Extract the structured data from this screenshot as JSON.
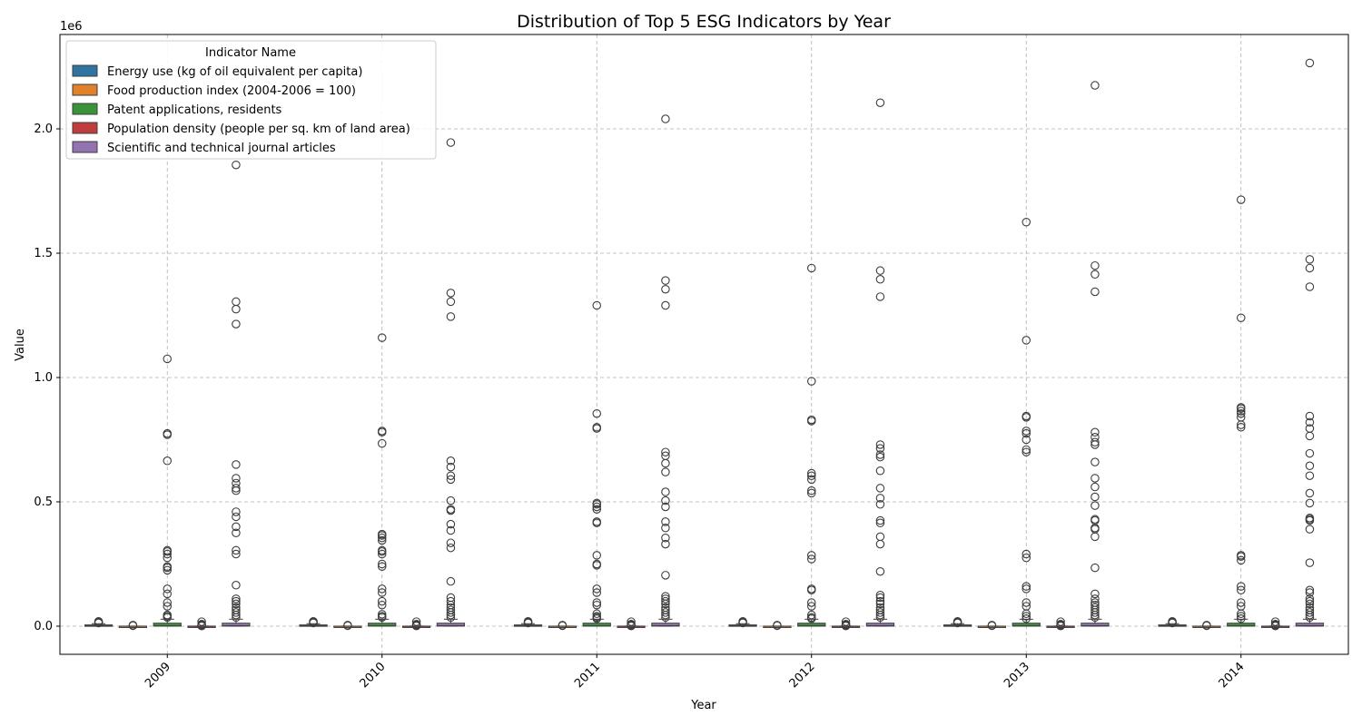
{
  "chart_data": {
    "type": "box",
    "title": "Distribution of Top 5 ESG Indicators by Year",
    "xlabel": "Year",
    "ylabel": "Value",
    "y_offset_label": "1e6",
    "ylim": [
      -115000,
      2380000
    ],
    "grid": true,
    "legend": {
      "title": "Indicator Name",
      "placement": "top-left"
    },
    "categories": [
      "2009",
      "2010",
      "2011",
      "2012",
      "2013",
      "2014"
    ],
    "y_ticks": [
      {
        "value": 0,
        "label": "0.0"
      },
      {
        "value": 500000,
        "label": "0.5"
      },
      {
        "value": 1000000,
        "label": "1.0"
      },
      {
        "value": 1500000,
        "label": "1.5"
      },
      {
        "value": 2000000,
        "label": "2.0"
      }
    ],
    "series": [
      {
        "name": "Energy use (kg of oil equivalent per capita)",
        "color": "#3274a1",
        "boxes": [
          {
            "q1": 1000,
            "median": 2500,
            "q3": 5000,
            "whisker_low": 0,
            "whisker_high": 10000,
            "outliers": [
              13000,
              15000,
              17000,
              19000
            ]
          },
          {
            "q1": 1000,
            "median": 2500,
            "q3": 5000,
            "whisker_low": 0,
            "whisker_high": 10000,
            "outliers": [
              13000,
              15000,
              17000,
              19000
            ]
          },
          {
            "q1": 1000,
            "median": 2500,
            "q3": 5000,
            "whisker_low": 0,
            "whisker_high": 10000,
            "outliers": [
              13000,
              15000,
              17000,
              19000
            ]
          },
          {
            "q1": 1000,
            "median": 2500,
            "q3": 5000,
            "whisker_low": 0,
            "whisker_high": 10000,
            "outliers": [
              13000,
              15000,
              17000,
              19000
            ]
          },
          {
            "q1": 1000,
            "median": 2500,
            "q3": 5000,
            "whisker_low": 0,
            "whisker_high": 10000,
            "outliers": [
              13000,
              15000,
              17000,
              19000
            ]
          },
          {
            "q1": 1000,
            "median": 2500,
            "q3": 5000,
            "whisker_low": 0,
            "whisker_high": 10000,
            "outliers": [
              13000,
              15000,
              17000,
              19000
            ]
          }
        ]
      },
      {
        "name": "Food production index (2004-2006 = 100)",
        "color": "#e1812c",
        "boxes": [
          {
            "q1": 95,
            "median": 105,
            "q3": 115,
            "whisker_low": 60,
            "whisker_high": 160,
            "outliers": [
              2000,
              4000
            ]
          },
          {
            "q1": 95,
            "median": 105,
            "q3": 115,
            "whisker_low": 60,
            "whisker_high": 160,
            "outliers": [
              2000,
              4000
            ]
          },
          {
            "q1": 95,
            "median": 105,
            "q3": 115,
            "whisker_low": 60,
            "whisker_high": 160,
            "outliers": [
              2000,
              4000
            ]
          },
          {
            "q1": 95,
            "median": 105,
            "q3": 115,
            "whisker_low": 60,
            "whisker_high": 160,
            "outliers": [
              2000,
              4000
            ]
          },
          {
            "q1": 95,
            "median": 105,
            "q3": 115,
            "whisker_low": 60,
            "whisker_high": 160,
            "outliers": [
              2000,
              4000
            ]
          },
          {
            "q1": 95,
            "median": 105,
            "q3": 115,
            "whisker_low": 60,
            "whisker_high": 160,
            "outliers": [
              2000,
              4000
            ]
          }
        ]
      },
      {
        "name": "Patent applications, residents",
        "color": "#3a923a",
        "boxes": [
          {
            "q1": 200,
            "median": 1500,
            "q3": 12000,
            "whisker_low": 0,
            "whisker_high": 28000,
            "outliers": [
              35000,
              40000,
              45000,
              80000,
              95000,
              130000,
              150000,
              225000,
              235000,
              240000,
              275000,
              290000,
              300000,
              305000,
              665000,
              770000,
              775000,
              1075000
            ]
          },
          {
            "q1": 200,
            "median": 1500,
            "q3": 12000,
            "whisker_low": 0,
            "whisker_high": 28000,
            "outliers": [
              35000,
              40000,
              48000,
              85000,
              100000,
              135000,
              150000,
              240000,
              250000,
              290000,
              300000,
              305000,
              345000,
              355000,
              365000,
              370000,
              735000,
              780000,
              785000,
              1160000
            ]
          },
          {
            "q1": 200,
            "median": 1500,
            "q3": 12000,
            "whisker_low": 0,
            "whisker_high": 28000,
            "outliers": [
              30000,
              35000,
              40000,
              50000,
              85000,
              95000,
              135000,
              150000,
              245000,
              250000,
              285000,
              415000,
              420000,
              470000,
              480000,
              490000,
              495000,
              795000,
              800000,
              855000,
              1290000
            ]
          },
          {
            "q1": 200,
            "median": 1500,
            "q3": 12000,
            "whisker_low": 0,
            "whisker_high": 28000,
            "outliers": [
              30000,
              35000,
              45000,
              80000,
              95000,
              145000,
              150000,
              270000,
              285000,
              535000,
              545000,
              590000,
              605000,
              615000,
              825000,
              830000,
              985000,
              1440000
            ]
          },
          {
            "q1": 200,
            "median": 1500,
            "q3": 12000,
            "whisker_low": 0,
            "whisker_high": 28000,
            "outliers": [
              30000,
              40000,
              50000,
              80000,
              95000,
              150000,
              160000,
              275000,
              290000,
              700000,
              710000,
              750000,
              775000,
              785000,
              840000,
              845000,
              1150000,
              1625000
            ]
          },
          {
            "q1": 200,
            "median": 1500,
            "q3": 12000,
            "whisker_low": 0,
            "whisker_high": 28000,
            "outliers": [
              30000,
              40000,
              50000,
              80000,
              95000,
              145000,
              160000,
              265000,
              280000,
              285000,
              800000,
              810000,
              840000,
              855000,
              865000,
              875000,
              880000,
              1240000,
              1715000
            ]
          }
        ]
      },
      {
        "name": "Population density (people per sq. km of land area)",
        "color": "#c03d3e",
        "boxes": [
          {
            "q1": 30,
            "median": 80,
            "q3": 200,
            "whisker_low": 0,
            "whisker_high": 450,
            "outliers": [
              1000,
              3000,
              6000,
              8000,
              18000
            ]
          },
          {
            "q1": 30,
            "median": 80,
            "q3": 200,
            "whisker_low": 0,
            "whisker_high": 450,
            "outliers": [
              1000,
              3000,
              6000,
              8000,
              18000
            ]
          },
          {
            "q1": 30,
            "median": 80,
            "q3": 200,
            "whisker_low": 0,
            "whisker_high": 450,
            "outliers": [
              1000,
              3000,
              6000,
              8000,
              18000
            ]
          },
          {
            "q1": 30,
            "median": 80,
            "q3": 200,
            "whisker_low": 0,
            "whisker_high": 450,
            "outliers": [
              1000,
              3000,
              6000,
              8000,
              18000
            ]
          },
          {
            "q1": 30,
            "median": 80,
            "q3": 200,
            "whisker_low": 0,
            "whisker_high": 450,
            "outliers": [
              1000,
              3000,
              6000,
              8000,
              18000
            ]
          },
          {
            "q1": 30,
            "median": 80,
            "q3": 200,
            "whisker_low": 0,
            "whisker_high": 450,
            "outliers": [
              1000,
              3000,
              6000,
              8000,
              18000
            ]
          }
        ]
      },
      {
        "name": "Scientific and technical journal articles",
        "color": "#9372b2",
        "boxes": [
          {
            "q1": 300,
            "median": 2000,
            "q3": 12000,
            "whisker_low": 0,
            "whisker_high": 28000,
            "outliers": [
              35000,
              45000,
              55000,
              65000,
              75000,
              90000,
              100000,
              110000,
              165000,
              290000,
              305000,
              375000,
              400000,
              440000,
              460000,
              545000,
              555000,
              575000,
              595000,
              650000,
              1215000,
              1275000,
              1305000,
              1855000
            ]
          },
          {
            "q1": 300,
            "median": 2000,
            "q3": 12000,
            "whisker_low": 0,
            "whisker_high": 28000,
            "outliers": [
              35000,
              45000,
              55000,
              65000,
              75000,
              85000,
              100000,
              115000,
              180000,
              315000,
              335000,
              385000,
              410000,
              465000,
              470000,
              505000,
              590000,
              605000,
              640000,
              665000,
              1245000,
              1305000,
              1340000,
              1945000
            ]
          },
          {
            "q1": 300,
            "median": 2000,
            "q3": 12000,
            "whisker_low": 0,
            "whisker_high": 28000,
            "outliers": [
              35000,
              45000,
              55000,
              65000,
              75000,
              90000,
              100000,
              110000,
              120000,
              205000,
              330000,
              355000,
              395000,
              420000,
              480000,
              505000,
              540000,
              620000,
              655000,
              685000,
              700000,
              1290000,
              1355000,
              1390000,
              2040000
            ]
          },
          {
            "q1": 300,
            "median": 2000,
            "q3": 12000,
            "whisker_low": 0,
            "whisker_high": 28000,
            "outliers": [
              35000,
              45000,
              55000,
              65000,
              75000,
              90000,
              100000,
              115000,
              125000,
              220000,
              330000,
              360000,
              415000,
              425000,
              490000,
              515000,
              555000,
              625000,
              680000,
              690000,
              715000,
              730000,
              1325000,
              1395000,
              1430000,
              2105000
            ]
          },
          {
            "q1": 300,
            "median": 2000,
            "q3": 12000,
            "whisker_low": 0,
            "whisker_high": 28000,
            "outliers": [
              35000,
              45000,
              55000,
              65000,
              75000,
              85000,
              95000,
              110000,
              130000,
              235000,
              360000,
              390000,
              395000,
              425000,
              430000,
              485000,
              520000,
              560000,
              595000,
              660000,
              730000,
              740000,
              760000,
              780000,
              1345000,
              1415000,
              1450000,
              2175000
            ]
          },
          {
            "q1": 300,
            "median": 2000,
            "q3": 12000,
            "whisker_low": 0,
            "whisker_high": 28000,
            "outliers": [
              35000,
              45000,
              55000,
              65000,
              75000,
              90000,
              100000,
              110000,
              135000,
              145000,
              255000,
              390000,
              425000,
              430000,
              435000,
              495000,
              535000,
              605000,
              645000,
              695000,
              765000,
              795000,
              820000,
              845000,
              1365000,
              1440000,
              1475000,
              2265000
            ]
          }
        ]
      }
    ]
  }
}
